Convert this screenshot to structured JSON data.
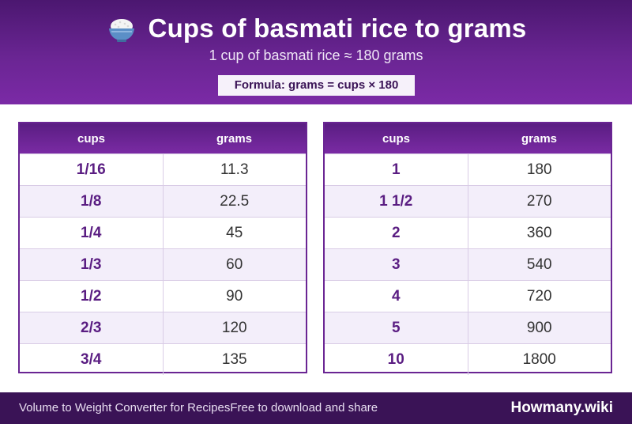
{
  "header": {
    "icon": "rice-bowl-icon",
    "title": "Cups of basmati rice to grams",
    "subtitle": "1 cup of basmati rice ≈ 180 grams",
    "formula": "Formula: grams = cups × 180"
  },
  "tables": [
    {
      "headers": [
        "cups",
        "grams"
      ],
      "rows": [
        [
          "1/16",
          "11.3"
        ],
        [
          "1/8",
          "22.5"
        ],
        [
          "1/4",
          "45"
        ],
        [
          "1/3",
          "60"
        ],
        [
          "1/2",
          "90"
        ],
        [
          "2/3",
          "120"
        ],
        [
          "3/4",
          "135"
        ]
      ]
    },
    {
      "headers": [
        "cups",
        "grams"
      ],
      "rows": [
        [
          "1",
          "180"
        ],
        [
          "1 1/2",
          "270"
        ],
        [
          "2",
          "360"
        ],
        [
          "3",
          "540"
        ],
        [
          "4",
          "720"
        ],
        [
          "5",
          "900"
        ],
        [
          "10",
          "1800"
        ]
      ]
    }
  ],
  "footer": {
    "left_text_1": "Volume to Weight Converter for Recipes",
    "left_text_2": "Free to download and share",
    "brand": "Howmany.wiki"
  },
  "colors": {
    "accent": "#6a2593",
    "accent_dark": "#3a1356",
    "row_alt": "#f3eefa"
  }
}
